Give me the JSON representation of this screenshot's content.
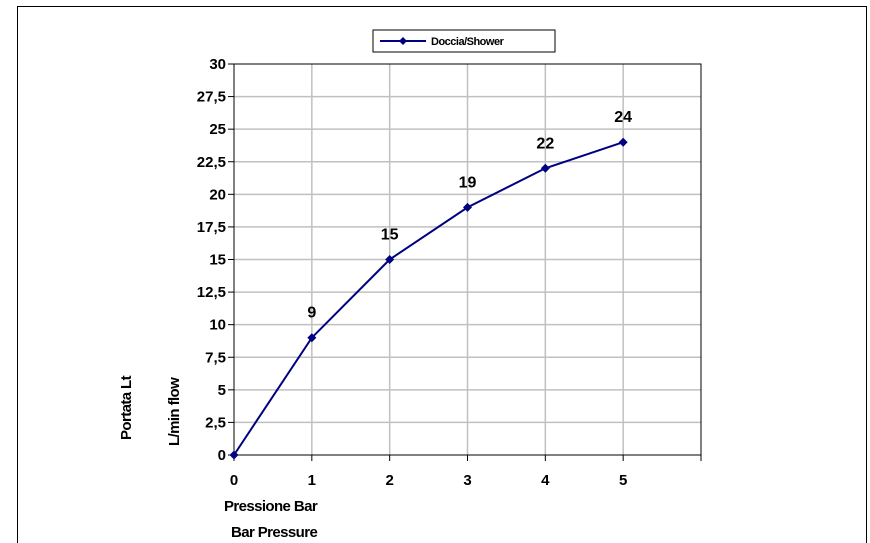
{
  "chart_data": {
    "type": "line",
    "x": [
      0,
      1,
      2,
      3,
      4,
      5
    ],
    "series": [
      {
        "name": "Doccia/Shower",
        "values": [
          0,
          9,
          15,
          19,
          22,
          24
        ],
        "color": "#000080"
      }
    ],
    "data_labels": [
      "9",
      "15",
      "19",
      "22",
      "24"
    ],
    "xticks": [
      "0",
      "1",
      "2",
      "3",
      "4",
      "5"
    ],
    "yticks": [
      "0",
      "2,5",
      "5",
      "7,5",
      "10",
      "12,5",
      "15",
      "17,5",
      "20",
      "22,5",
      "25",
      "27,5",
      "30"
    ],
    "xlim": [
      0,
      6
    ],
    "ylim": [
      0,
      30
    ],
    "xlabel": [
      "Pressione Bar",
      "Bar Pressure"
    ],
    "ylabel": [
      "Portata Lt",
      "L/min flow"
    ],
    "grid": true,
    "legend_position": "top-center"
  }
}
